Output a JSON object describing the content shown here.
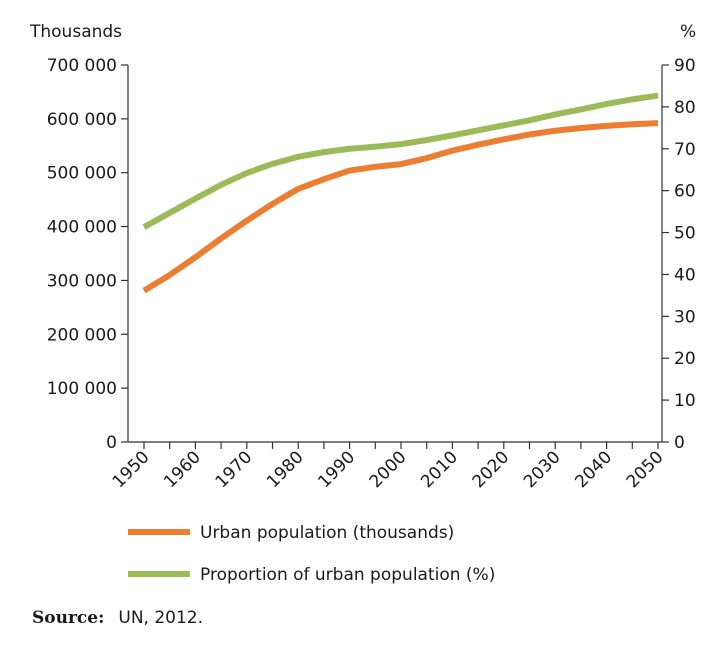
{
  "chart_data": {
    "type": "line",
    "title": "",
    "ylabel_left": "Thousands",
    "ylabel_right": "%",
    "x_ticks": [
      "1950",
      "1960",
      "1970",
      "1980",
      "1990",
      "2000",
      "2010",
      "2020",
      "2030",
      "2040",
      "2050"
    ],
    "xlim": [
      1950,
      2050
    ],
    "ylim_left": [
      0,
      700000
    ],
    "ylim_right": [
      0,
      90
    ],
    "y_left_ticks": [
      0,
      100000,
      200000,
      300000,
      400000,
      500000,
      600000,
      700000
    ],
    "y_left_tick_labels": [
      "0",
      "100 000",
      "200 000",
      "300 000",
      "400 000",
      "500 000",
      "600 000",
      "700 000"
    ],
    "y_right_ticks": [
      0,
      10,
      20,
      30,
      40,
      50,
      60,
      70,
      80,
      90
    ],
    "y_right_tick_labels": [
      "0",
      "10",
      "20",
      "30",
      "40",
      "50",
      "60",
      "70",
      "80",
      "90"
    ],
    "grid": false,
    "legend_position": "bottom",
    "series": [
      {
        "name": "Urban population (thousands)",
        "axis": "left",
        "color": "#ED7D31",
        "x": [
          1950,
          1955,
          1960,
          1965,
          1970,
          1975,
          1980,
          1985,
          1990,
          1995,
          2000,
          2005,
          2010,
          2015,
          2020,
          2025,
          2030,
          2035,
          2040,
          2045,
          2050
        ],
        "values": [
          281000,
          310000,
          343000,
          378000,
          411000,
          442000,
          470000,
          488000,
          504000,
          511000,
          516000,
          527000,
          541000,
          552000,
          562000,
          571000,
          578000,
          583000,
          587000,
          590000,
          592000
        ]
      },
      {
        "name": "Proportion of urban population (%)",
        "axis": "right",
        "color": "#9BBB59",
        "x": [
          1950,
          1955,
          1960,
          1965,
          1970,
          1975,
          1980,
          1985,
          1990,
          1995,
          2000,
          2005,
          2010,
          2015,
          2020,
          2025,
          2030,
          2035,
          2040,
          2045,
          2050
        ],
        "values": [
          51.3,
          54.7,
          58.1,
          61.4,
          64.2,
          66.4,
          68.1,
          69.2,
          70.0,
          70.5,
          71.1,
          72.1,
          73.2,
          74.4,
          75.6,
          76.8,
          78.2,
          79.4,
          80.7,
          81.8,
          82.7
        ]
      }
    ]
  },
  "source": {
    "label": "Source:",
    "text": "UN, 2012."
  }
}
